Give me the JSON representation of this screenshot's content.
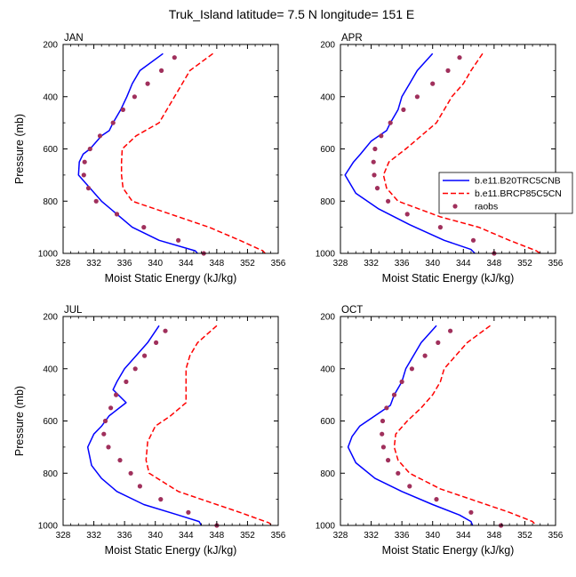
{
  "title": "Truk_Island  latitude= 7.5 N longitude= 151 E",
  "colors": {
    "model1": "#0000ff",
    "model2": "#ff0000",
    "obs": "#a0305c",
    "axis": "#000000"
  },
  "legend": {
    "placement": "right of APR panel",
    "entries": [
      {
        "label": "b.e11.B20TRC5CNB",
        "style": "solid-line",
        "color": "#0000ff"
      },
      {
        "label": "b.e11.BRCP85C5CN",
        "style": "dashed-line",
        "color": "#ff0000"
      },
      {
        "label": "raobs",
        "style": "marker",
        "color": "#a0305c"
      }
    ]
  },
  "chart_data": [
    {
      "type": "line",
      "panel": "JAN",
      "xlabel": "Moist Static Energy (kJ/kg)",
      "ylabel": "Pressure (mb)",
      "xlim": [
        328,
        356
      ],
      "ylim": [
        1000,
        200
      ],
      "y_inverted": true,
      "xticks": [
        "328",
        "332",
        "336",
        "340",
        "344",
        "348",
        "352",
        "356"
      ],
      "yticks": [
        "200",
        "400",
        "600",
        "800",
        "1000"
      ],
      "series": [
        {
          "name": "b.e11.B20TRC5CNB",
          "style": "solid",
          "color": "#0000ff",
          "points": [
            [
              341,
              235
            ],
            [
              338,
              300
            ],
            [
              337,
              350
            ],
            [
              336.3,
              400
            ],
            [
              335.5,
              450
            ],
            [
              334.5,
              500
            ],
            [
              334,
              530
            ],
            [
              333,
              550
            ],
            [
              331.5,
              600
            ],
            [
              330.6,
              620
            ],
            [
              330.1,
              650
            ],
            [
              330,
              700
            ],
            [
              331.5,
              750
            ],
            [
              333,
              800
            ],
            [
              335,
              850
            ],
            [
              337,
              900
            ],
            [
              340.5,
              950
            ],
            [
              345.2,
              990
            ],
            [
              345.5,
              1000
            ]
          ]
        },
        {
          "name": "b.e11.BRCP85C5CN",
          "style": "dashed",
          "color": "#ff0000",
          "points": [
            [
              347.5,
              235
            ],
            [
              344.5,
              300
            ],
            [
              343.5,
              350
            ],
            [
              342.5,
              400
            ],
            [
              341.5,
              450
            ],
            [
              340.5,
              500
            ],
            [
              337.5,
              550
            ],
            [
              335.7,
              600
            ],
            [
              335.6,
              650
            ],
            [
              335.6,
              700
            ],
            [
              335.8,
              750
            ],
            [
              337,
              800
            ],
            [
              342,
              850
            ],
            [
              347,
              900
            ],
            [
              351,
              950
            ],
            [
              354,
              990
            ],
            [
              354.3,
              1000
            ]
          ]
        },
        {
          "name": "raobs",
          "style": "marker",
          "color": "#a0305c",
          "points": [
            [
              342.5,
              250
            ],
            [
              340.8,
              300
            ],
            [
              339,
              350
            ],
            [
              337.3,
              400
            ],
            [
              335.8,
              450
            ],
            [
              334.5,
              500
            ],
            [
              332.8,
              550
            ],
            [
              331.5,
              600
            ],
            [
              330.8,
              650
            ],
            [
              330.7,
              700
            ],
            [
              331.3,
              750
            ],
            [
              332.3,
              800
            ],
            [
              335,
              850
            ],
            [
              338.5,
              900
            ],
            [
              343,
              950
            ],
            [
              346.3,
              1000
            ]
          ]
        }
      ]
    },
    {
      "type": "line",
      "panel": "APR",
      "xlabel": "Moist Static Energy (kJ/kg)",
      "ylabel": "",
      "xlim": [
        328,
        356
      ],
      "ylim": [
        1000,
        200
      ],
      "y_inverted": true,
      "xticks": [
        "328",
        "332",
        "336",
        "340",
        "344",
        "348",
        "352",
        "356"
      ],
      "yticks": [
        "200",
        "400",
        "600",
        "800",
        "1000"
      ],
      "series": [
        {
          "name": "b.e11.B20TRC5CNB",
          "style": "solid",
          "color": "#0000ff",
          "points": [
            [
              340,
              235
            ],
            [
              338,
              300
            ],
            [
              337,
              350
            ],
            [
              336,
              400
            ],
            [
              335.5,
              450
            ],
            [
              334.5,
              500
            ],
            [
              334,
              530
            ],
            [
              332,
              570
            ],
            [
              330.6,
              620
            ],
            [
              329.7,
              650
            ],
            [
              328.6,
              700
            ],
            [
              330,
              770
            ],
            [
              333,
              830
            ],
            [
              337,
              890
            ],
            [
              341.5,
              950
            ],
            [
              345,
              985
            ],
            [
              345.5,
              1000
            ]
          ]
        },
        {
          "name": "b.e11.BRCP85C5CN",
          "style": "dashed",
          "color": "#ff0000",
          "points": [
            [
              346.5,
              235
            ],
            [
              345,
              300
            ],
            [
              344,
              350
            ],
            [
              342.5,
              400
            ],
            [
              341.5,
              450
            ],
            [
              340.5,
              500
            ],
            [
              338.5,
              550
            ],
            [
              336.5,
              600
            ],
            [
              334.3,
              650
            ],
            [
              333.6,
              700
            ],
            [
              334,
              750
            ],
            [
              335.5,
              800
            ],
            [
              341,
              860
            ],
            [
              346,
              900
            ],
            [
              350,
              950
            ],
            [
              353.5,
              990
            ],
            [
              354,
              1000
            ]
          ]
        },
        {
          "name": "raobs",
          "style": "marker",
          "color": "#a0305c",
          "points": [
            [
              343.5,
              250
            ],
            [
              342,
              300
            ],
            [
              340,
              350
            ],
            [
              338,
              400
            ],
            [
              336.2,
              450
            ],
            [
              334.5,
              500
            ],
            [
              333.3,
              550
            ],
            [
              332.5,
              600
            ],
            [
              332.3,
              650
            ],
            [
              332.4,
              700
            ],
            [
              332.8,
              750
            ],
            [
              334.2,
              800
            ],
            [
              336.7,
              850
            ],
            [
              341,
              900
            ],
            [
              345.3,
              950
            ],
            [
              348,
              1000
            ]
          ]
        }
      ]
    },
    {
      "type": "line",
      "panel": "JUL",
      "xlabel": "Moist Static Energy (kJ/kg)",
      "ylabel": "Pressure (mb)",
      "xlim": [
        328,
        356
      ],
      "ylim": [
        1000,
        200
      ],
      "y_inverted": true,
      "xticks": [
        "328",
        "332",
        "336",
        "340",
        "344",
        "348",
        "352",
        "356"
      ],
      "yticks": [
        "200",
        "400",
        "600",
        "800",
        "1000"
      ],
      "series": [
        {
          "name": "b.e11.B20TRC5CNB",
          "style": "solid",
          "color": "#0000ff",
          "points": [
            [
              340.5,
              235
            ],
            [
              339,
              300
            ],
            [
              337.5,
              350
            ],
            [
              336,
              400
            ],
            [
              335,
              450
            ],
            [
              334.5,
              480
            ],
            [
              336.2,
              530
            ],
            [
              334,
              580
            ],
            [
              333,
              620
            ],
            [
              332,
              650
            ],
            [
              331.2,
              700
            ],
            [
              331.7,
              770
            ],
            [
              333,
              820
            ],
            [
              335,
              870
            ],
            [
              338.5,
              920
            ],
            [
              343,
              960
            ],
            [
              345.7,
              985
            ],
            [
              346,
              1000
            ]
          ]
        },
        {
          "name": "b.e11.BRCP85C5CN",
          "style": "dashed",
          "color": "#ff0000",
          "points": [
            [
              348,
              235
            ],
            [
              345.5,
              300
            ],
            [
              344.5,
              350
            ],
            [
              344,
              400
            ],
            [
              344,
              500
            ],
            [
              344,
              530
            ],
            [
              342,
              580
            ],
            [
              340,
              620
            ],
            [
              339,
              680
            ],
            [
              338.8,
              750
            ],
            [
              339.2,
              800
            ],
            [
              343,
              870
            ],
            [
              347,
              910
            ],
            [
              351,
              950
            ],
            [
              354.8,
              990
            ],
            [
              355.2,
              1000
            ]
          ]
        },
        {
          "name": "raobs",
          "style": "marker",
          "color": "#a0305c",
          "points": [
            [
              341.3,
              255
            ],
            [
              340.1,
              300
            ],
            [
              338.6,
              350
            ],
            [
              337.4,
              400
            ],
            [
              336.2,
              450
            ],
            [
              334.9,
              500
            ],
            [
              334.2,
              550
            ],
            [
              333.5,
              600
            ],
            [
              333.3,
              650
            ],
            [
              333.9,
              700
            ],
            [
              335.4,
              750
            ],
            [
              336.8,
              800
            ],
            [
              338,
              850
            ],
            [
              340.7,
              900
            ],
            [
              344.3,
              950
            ],
            [
              348,
              1000
            ]
          ]
        }
      ]
    },
    {
      "type": "line",
      "panel": "OCT",
      "xlabel": "Moist Static Energy (kJ/kg)",
      "ylabel": "",
      "xlim": [
        328,
        356
      ],
      "ylim": [
        1000,
        200
      ],
      "y_inverted": true,
      "xticks": [
        "328",
        "332",
        "336",
        "340",
        "344",
        "348",
        "352",
        "356"
      ],
      "yticks": [
        "200",
        "400",
        "600",
        "800",
        "1000"
      ],
      "series": [
        {
          "name": "b.e11.B20TRC5CNB",
          "style": "solid",
          "color": "#0000ff",
          "points": [
            [
              340.5,
              235
            ],
            [
              338.5,
              300
            ],
            [
              337.5,
              350
            ],
            [
              336.5,
              400
            ],
            [
              336,
              450
            ],
            [
              335,
              500
            ],
            [
              334.5,
              540
            ],
            [
              332.5,
              580
            ],
            [
              330.5,
              620
            ],
            [
              329.5,
              660
            ],
            [
              329,
              700
            ],
            [
              330,
              760
            ],
            [
              332.5,
              820
            ],
            [
              336,
              870
            ],
            [
              340,
              920
            ],
            [
              343.5,
              960
            ],
            [
              345,
              985
            ],
            [
              345.2,
              1000
            ]
          ]
        },
        {
          "name": "b.e11.BRCP85C5CN",
          "style": "dashed",
          "color": "#ff0000",
          "points": [
            [
              347.5,
              235
            ],
            [
              344.5,
              300
            ],
            [
              343,
              350
            ],
            [
              341.5,
              400
            ],
            [
              341,
              450
            ],
            [
              340,
              500
            ],
            [
              338.5,
              550
            ],
            [
              336.7,
              600
            ],
            [
              335.2,
              650
            ],
            [
              335,
              700
            ],
            [
              335.5,
              750
            ],
            [
              337,
              800
            ],
            [
              341,
              860
            ],
            [
              346,
              910
            ],
            [
              350,
              950
            ],
            [
              353,
              985
            ],
            [
              353.5,
              1000
            ]
          ]
        },
        {
          "name": "raobs",
          "style": "marker",
          "color": "#a0305c",
          "points": [
            [
              342.3,
              255
            ],
            [
              340.7,
              300
            ],
            [
              339,
              350
            ],
            [
              337.3,
              400
            ],
            [
              336,
              450
            ],
            [
              335,
              500
            ],
            [
              334,
              550
            ],
            [
              333.5,
              600
            ],
            [
              333.4,
              650
            ],
            [
              333.6,
              700
            ],
            [
              334.2,
              750
            ],
            [
              335.5,
              800
            ],
            [
              337,
              850
            ],
            [
              340.5,
              900
            ],
            [
              345,
              950
            ],
            [
              348.9,
              1000
            ]
          ]
        }
      ]
    }
  ]
}
